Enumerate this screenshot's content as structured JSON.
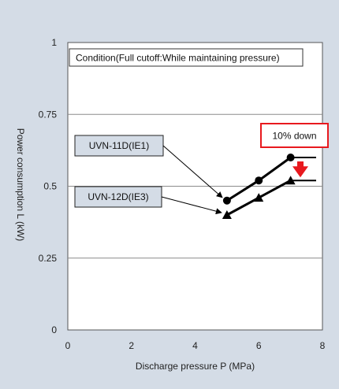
{
  "chart_data": {
    "type": "line",
    "title": "",
    "xlabel": "Discharge pressure  P  (MPa)",
    "ylabel": "Power consumption  L  (kW)",
    "xlim": [
      0,
      8
    ],
    "ylim": [
      0,
      1
    ],
    "x_ticks": [
      0,
      2,
      4,
      6,
      8
    ],
    "x_tick_labels": [
      "0",
      "2",
      "4",
      "6",
      "8"
    ],
    "y_ticks": [
      0,
      0.25,
      0.5,
      0.75,
      1
    ],
    "y_tick_labels": [
      "0",
      "0.25",
      "0.5",
      "0.75",
      "1"
    ],
    "grid": "horizontal",
    "condition_note": "Condition(Full cutoff:While maintaining pressure)",
    "series": [
      {
        "name": "UVN-11D(IE1)",
        "marker": "circle",
        "color": "#000000",
        "x": [
          5,
          6,
          7
        ],
        "y": [
          0.45,
          0.52,
          0.6
        ]
      },
      {
        "name": "UVN-12D(IE3)",
        "marker": "triangle",
        "color": "#000000",
        "x": [
          5,
          6,
          7
        ],
        "y": [
          0.4,
          0.46,
          0.52
        ]
      }
    ],
    "annotation": {
      "text": "10% down",
      "arrow_color": "#e8191e",
      "box_border_color": "#e8191e"
    },
    "colors": {
      "background": "#d4dce6",
      "plot_area": "#ffffff",
      "label_box": "#d4dce6"
    }
  }
}
